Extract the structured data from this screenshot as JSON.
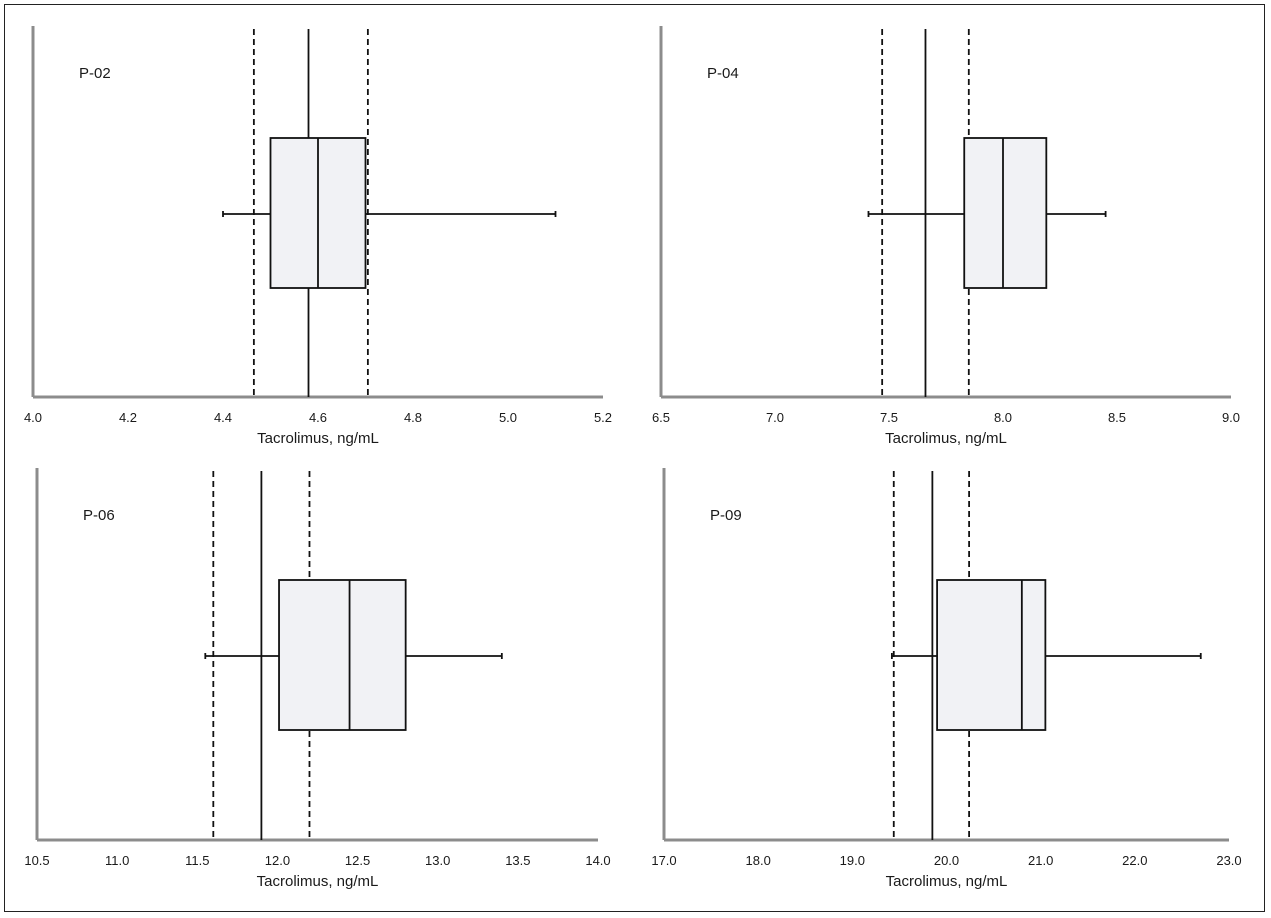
{
  "chart_data": [
    {
      "type": "box",
      "panel_label": "P-02",
      "xlabel": "Tacrolimus, ng/mL",
      "xlim": [
        4.0,
        5.2
      ],
      "xticks": [
        "4.0",
        "4.2",
        "4.4",
        "4.6",
        "4.8",
        "5.0",
        "5.2"
      ],
      "box": {
        "min": 4.4,
        "q1": 4.5,
        "median": 4.6,
        "q3": 4.7,
        "max": 5.1
      },
      "reference_lines": {
        "solid": 4.58,
        "dashed": [
          4.465,
          4.705
        ]
      }
    },
    {
      "type": "box",
      "panel_label": "P-04",
      "xlabel": "Tacrolimus, ng/mL",
      "xlim": [
        6.5,
        9.0
      ],
      "xticks": [
        "6.5",
        "7.0",
        "7.5",
        "8.0",
        "8.5",
        "9.0"
      ],
      "box": {
        "min": 7.41,
        "q1": 7.83,
        "median": 8.0,
        "q3": 8.19,
        "max": 8.45
      },
      "reference_lines": {
        "solid": 7.66,
        "dashed": [
          7.47,
          7.85
        ]
      }
    },
    {
      "type": "box",
      "panel_label": "P-06",
      "xlabel": "Tacrolimus, ng/mL",
      "xlim": [
        10.5,
        14.0
      ],
      "xticks": [
        "10.5",
        "11.0",
        "11.5",
        "12.0",
        "12.5",
        "13.0",
        "13.5",
        "14.0"
      ],
      "box": {
        "min": 11.55,
        "q1": 12.01,
        "median": 12.45,
        "q3": 12.8,
        "max": 13.4
      },
      "reference_lines": {
        "solid": 11.9,
        "dashed": [
          11.6,
          12.2
        ]
      }
    },
    {
      "type": "box",
      "panel_label": "P-09",
      "xlabel": "Tacrolimus, ng/mL",
      "xlim": [
        17.0,
        23.0
      ],
      "xticks": [
        "17.0",
        "18.0",
        "19.0",
        "20.0",
        "21.0",
        "22.0",
        "23.0"
      ],
      "box": {
        "min": 19.42,
        "q1": 19.9,
        "median": 20.8,
        "q3": 21.05,
        "max": 22.7
      },
      "reference_lines": {
        "solid": 19.85,
        "dashed": [
          19.44,
          20.24
        ]
      }
    }
  ]
}
